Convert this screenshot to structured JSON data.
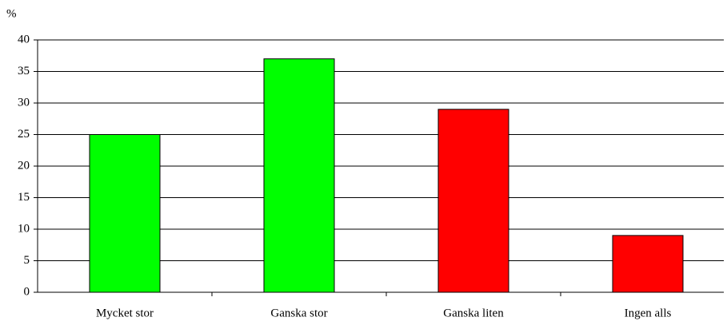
{
  "chart_data": {
    "type": "bar",
    "y_label": "%",
    "categories": [
      "Mycket stor",
      "Ganska stor",
      "Ganska liten",
      "Ingen alls"
    ],
    "values": [
      25,
      37,
      29,
      9
    ],
    "colors": [
      "#00ff00",
      "#00ff00",
      "#ff0000",
      "#ff0000"
    ],
    "ylim": [
      0,
      40
    ],
    "yticks": [
      0,
      5,
      10,
      15,
      20,
      25,
      30,
      35,
      40
    ],
    "grid": true
  }
}
